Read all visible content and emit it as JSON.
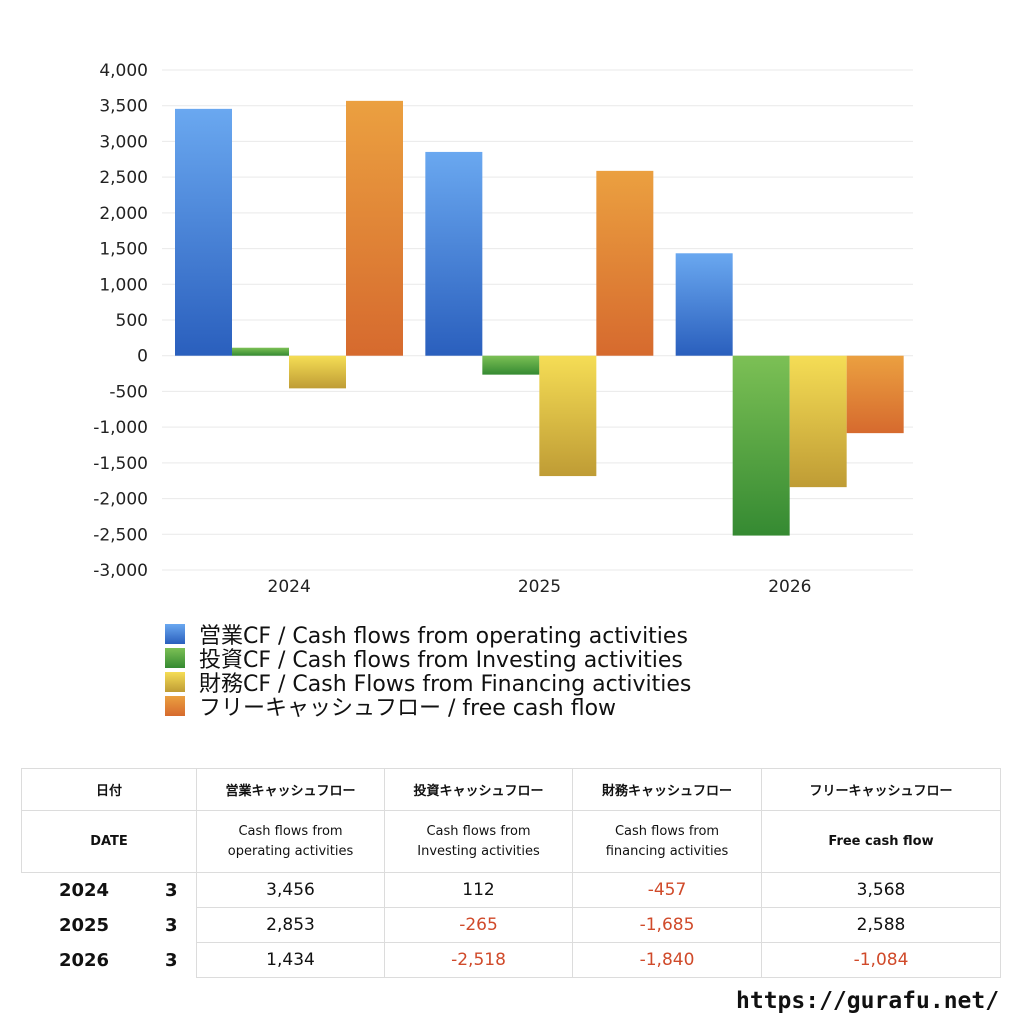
{
  "chart_data": {
    "type": "bar",
    "categories": [
      "2024",
      "2025",
      "2026"
    ],
    "series": [
      {
        "name": "営業CF / Cash flows from operating activities",
        "values": [
          3456,
          2853,
          1434
        ]
      },
      {
        "name": "投資CF / Cash flows from Investing activities",
        "values": [
          112,
          -265,
          -2518
        ]
      },
      {
        "name": "財務CF / Cash Flows from Financing activities",
        "values": [
          -457,
          -1685,
          -1840
        ]
      },
      {
        "name": "フリーキャッシュフロー / free cash flow",
        "values": [
          3568,
          2588,
          -1084
        ]
      }
    ],
    "ylim": [
      -3000,
      4000
    ],
    "yticks": [
      "4,000",
      "3,500",
      "3,000",
      "2,500",
      "2,000",
      "1,500",
      "1,000",
      "500",
      "0",
      "-500",
      "-1,000",
      "-1,500",
      "-2,000",
      "-2,500",
      "-3,000"
    ],
    "grid": true,
    "legend_position": "bottom",
    "colors": {
      "operating": [
        "#6aa8f0",
        "#2a5fbd"
      ],
      "investing": [
        "#7cc055",
        "#358a32"
      ],
      "financing": [
        "#f5dd55",
        "#bf9c35"
      ],
      "free": [
        "#eba040",
        "#d66a2e"
      ]
    }
  },
  "table": {
    "headers_jp": [
      "日付",
      "営業キャッシュフロー",
      "投資キャッシュフロー",
      "財務キャッシュフロー",
      "フリーキャッシュフロー"
    ],
    "headers_en": [
      "DATE",
      "Cash flows from\noperating activities",
      "Cash flows from\nInvesting activities",
      "Cash flows from\nfinancing activities",
      "Free cash flow"
    ],
    "rows": [
      {
        "year": "2024",
        "month": "3",
        "operating": "3,456",
        "investing": "112",
        "financing": "-457",
        "free": "3,568"
      },
      {
        "year": "2025",
        "month": "3",
        "operating": "2,853",
        "investing": "-265",
        "financing": "-1,685",
        "free": "2,588"
      },
      {
        "year": "2026",
        "month": "3",
        "operating": "1,434",
        "investing": "-2,518",
        "financing": "-1,840",
        "free": "-1,084"
      }
    ]
  },
  "footer": {
    "url": "https://gurafu.net/"
  }
}
